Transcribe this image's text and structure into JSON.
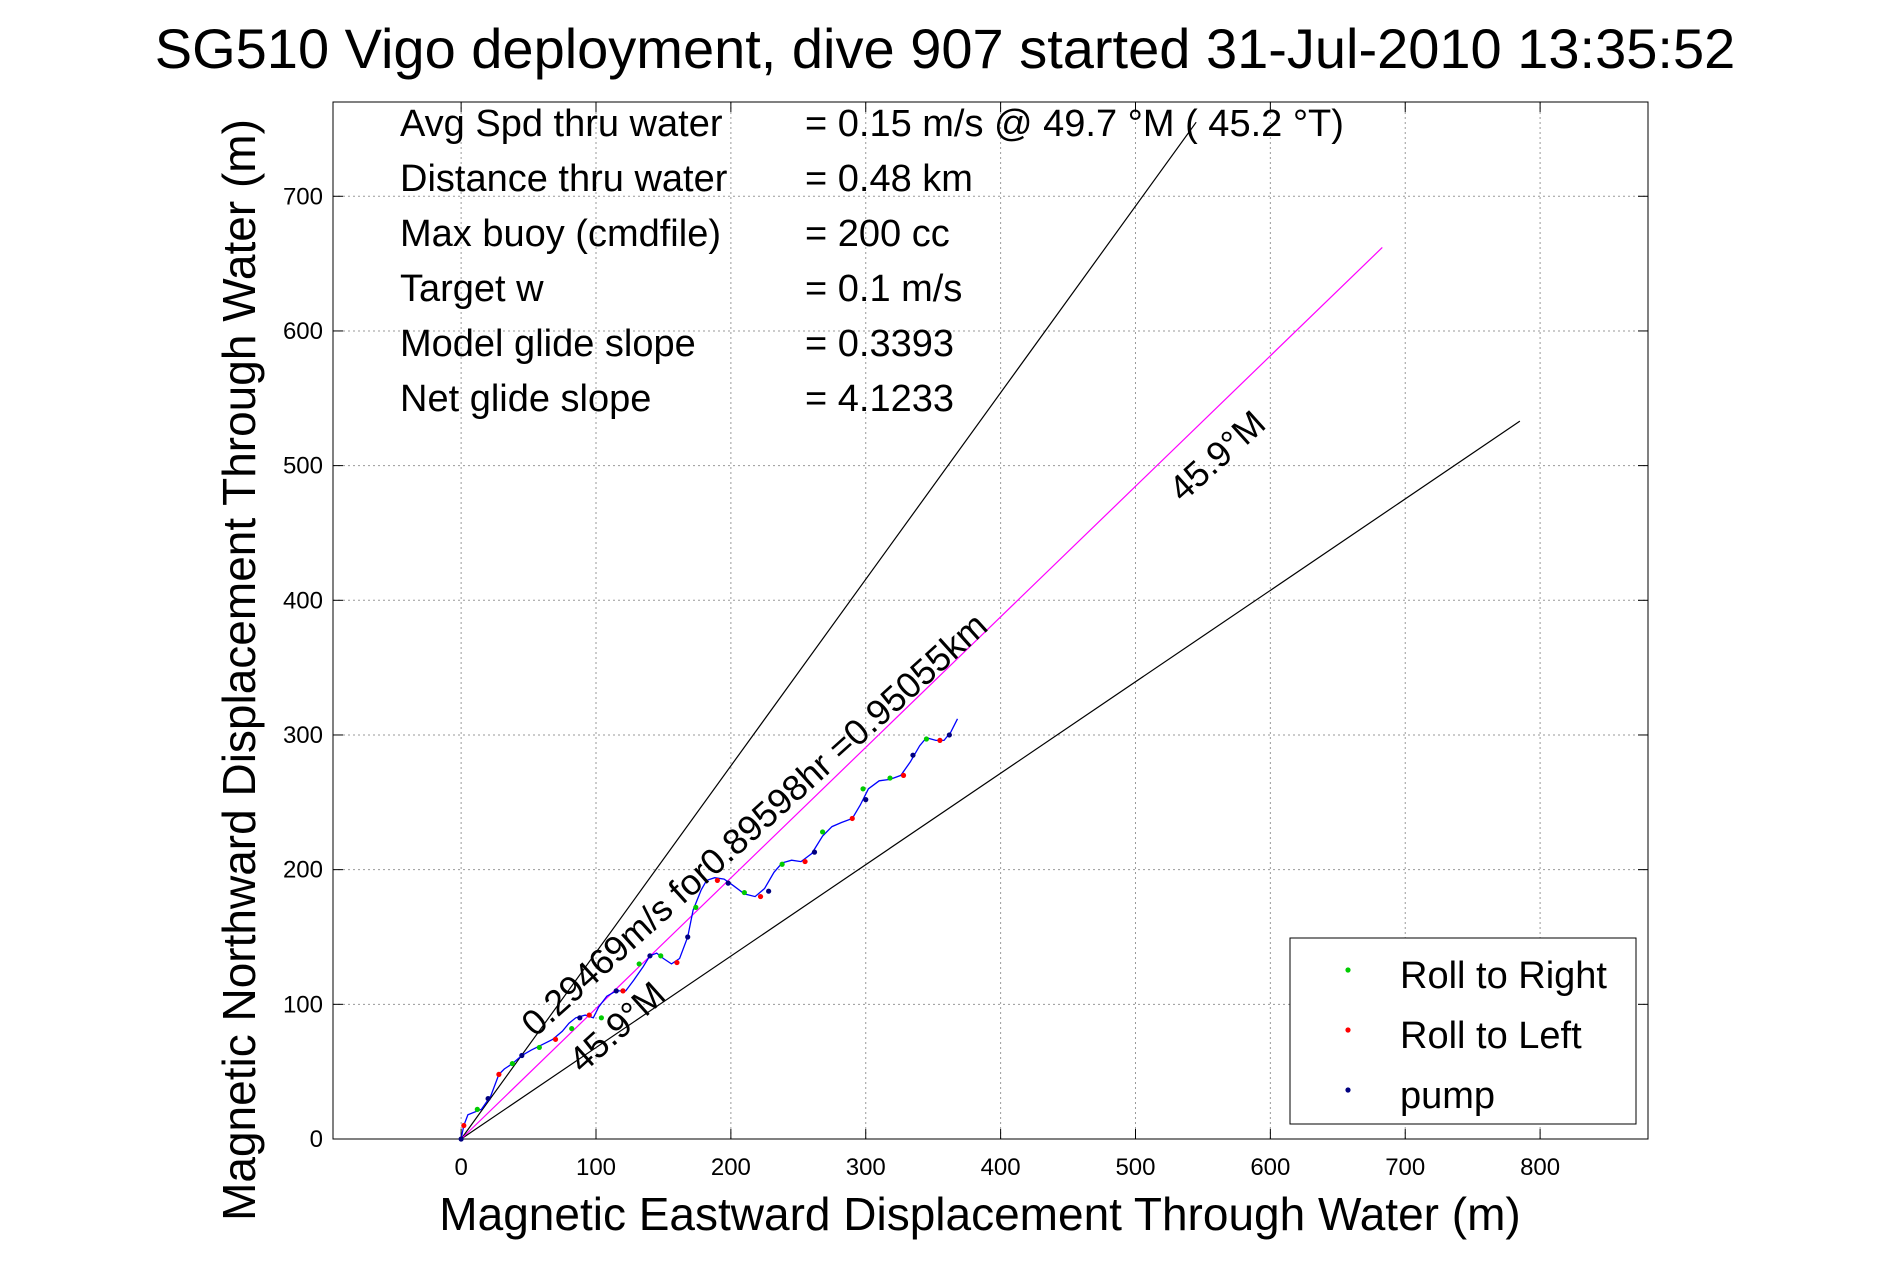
{
  "chart_data": {
    "type": "scatter",
    "title": "SG510 Vigo deployment, dive 907 started 31-Jul-2010 13:35:52",
    "xlabel": "Magnetic Eastward Displacement Through Water (m)",
    "ylabel": "Magnetic Northward Displacement Through Water (m)",
    "xlim": [
      -95,
      880
    ],
    "ylim": [
      0,
      770
    ],
    "xticks": [
      0,
      100,
      200,
      300,
      400,
      500,
      600,
      700,
      800
    ],
    "yticks": [
      0,
      100,
      200,
      300,
      400,
      500,
      600,
      700
    ],
    "grid": true,
    "legend_position": "bottom-right",
    "info_lines": [
      {
        "label": "Avg Spd thru water",
        "value": "=  0.15 m/s @  49.7 °M ( 45.2 °T)"
      },
      {
        "label": "Distance thru water",
        "value": "=  0.48 km"
      },
      {
        "label": "Max buoy (cmdfile)",
        "value": "= 200 cc"
      },
      {
        "label": "Target w",
        "value": "= 0.1 m/s"
      },
      {
        "label": "Model glide slope",
        "value": "= 0.3393"
      },
      {
        "label": "Net glide slope",
        "value": "= 4.1233"
      }
    ],
    "reference_lines": [
      {
        "x": [
          0,
          545
        ],
        "y": [
          0,
          755
        ],
        "color": "#000000"
      },
      {
        "x": [
          0,
          785
        ],
        "y": [
          0,
          533
        ],
        "color": "#000000"
      },
      {
        "x": [
          0,
          683
        ],
        "y": [
          0,
          662
        ],
        "color": "#ff00ff"
      }
    ],
    "annotations": [
      {
        "text": "0.29469m/s for0.89598hr =0.95055km",
        "x": 55,
        "y": 75,
        "angle": 42
      },
      {
        "text": "45.9°M",
        "x": 535,
        "y": 472,
        "angle": 42
      },
      {
        "text": "45.9°M",
        "x": 90,
        "y": 48,
        "angle": 42
      }
    ],
    "track": {
      "color": "#0000ff",
      "x": [
        0,
        2,
        5,
        15,
        22,
        28,
        32,
        38,
        45,
        52,
        60,
        68,
        75,
        80,
        85,
        92,
        98,
        102,
        108,
        115,
        122,
        128,
        135,
        140,
        145,
        150,
        156,
        162,
        168,
        172,
        178,
        182,
        188,
        195,
        202,
        210,
        218,
        225,
        232,
        238,
        245,
        252,
        260,
        268,
        275,
        282,
        290,
        296,
        302,
        310,
        318,
        326,
        333,
        340,
        345,
        352,
        358,
        363,
        368
      ],
      "y": [
        0,
        10,
        18,
        22,
        32,
        48,
        52,
        56,
        62,
        66,
        70,
        74,
        80,
        86,
        90,
        92,
        90,
        98,
        106,
        110,
        110,
        118,
        128,
        136,
        138,
        134,
        130,
        134,
        150,
        170,
        185,
        192,
        194,
        193,
        188,
        182,
        180,
        186,
        198,
        205,
        207,
        206,
        212,
        225,
        232,
        235,
        238,
        248,
        260,
        266,
        267,
        270,
        280,
        292,
        298,
        296,
        296,
        302,
        312
      ]
    },
    "series": [
      {
        "name": "Roll to Right",
        "color": "#00cc00",
        "x": [
          12,
          38,
          58,
          82,
          104,
          132,
          148,
          174,
          210,
          238,
          268,
          298,
          318,
          345
        ],
        "y": [
          22,
          56,
          68,
          82,
          90,
          130,
          136,
          172,
          183,
          204,
          228,
          260,
          268,
          297
        ]
      },
      {
        "name": "Roll to Left",
        "color": "#ff0000",
        "x": [
          2,
          28,
          70,
          95,
          120,
          160,
          190,
          222,
          255,
          290,
          328,
          355
        ],
        "y": [
          10,
          48,
          74,
          92,
          110,
          131,
          192,
          180,
          206,
          238,
          270,
          296
        ]
      },
      {
        "name": "pump",
        "color": "#000080",
        "x": [
          0,
          20,
          45,
          88,
          115,
          140,
          168,
          198,
          228,
          262,
          300,
          335,
          362
        ],
        "y": [
          0,
          30,
          62,
          90,
          110,
          136,
          150,
          190,
          184,
          213,
          252,
          285,
          300
        ]
      }
    ]
  }
}
